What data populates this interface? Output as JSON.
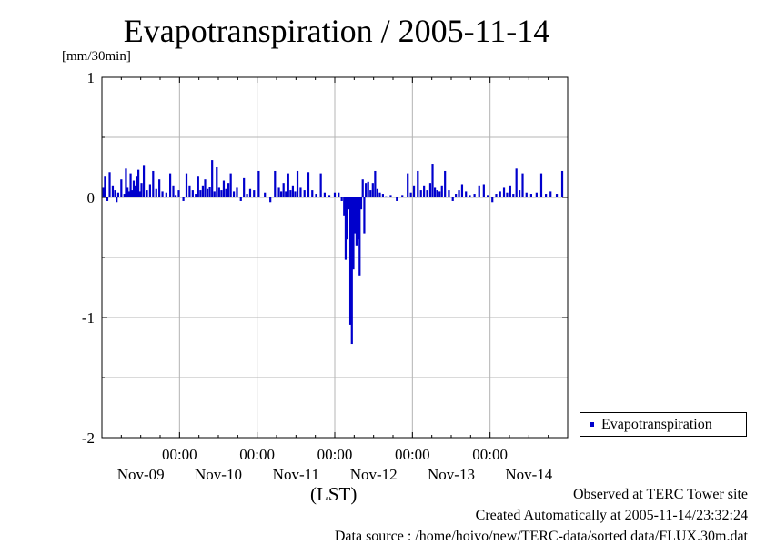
{
  "chart_data": {
    "type": "bar",
    "title": "Evapotranspiration / 2005-11-14",
    "ylabel": "[mm/30min]",
    "xlabel": "(LST)",
    "ylim": [
      -2,
      1
    ],
    "yticks": [
      {
        "value": 1,
        "label": "1"
      },
      {
        "value": 0,
        "label": "0"
      },
      {
        "value": -1,
        "label": "-1"
      },
      {
        "value": -2,
        "label": "-2"
      }
    ],
    "x_range_days": [
      0,
      6
    ],
    "x_tick_labels": [
      {
        "day": 1,
        "time": "00:00",
        "date": "Nov-09"
      },
      {
        "day": 2,
        "time": "00:00",
        "date": "Nov-10"
      },
      {
        "day": 3,
        "time": "00:00",
        "date": "Nov-11"
      },
      {
        "day": 4,
        "time": "00:00",
        "date": "Nov-12"
      },
      {
        "day": 5,
        "time": "00:00",
        "date": "Nov-13"
      },
      {
        "day": null,
        "time": "",
        "date": "Nov-14"
      }
    ],
    "grid": true,
    "legend_position": "right-bottom",
    "series": [
      {
        "name": "Evapotranspiration",
        "color": "#0000cc",
        "points": [
          [
            0.02,
            0.08
          ],
          [
            0.04,
            0.18
          ],
          [
            0.07,
            -0.03
          ],
          [
            0.1,
            0.21
          ],
          [
            0.14,
            0.1
          ],
          [
            0.17,
            0.06
          ],
          [
            0.19,
            -0.04
          ],
          [
            0.21,
            0.04
          ],
          [
            0.25,
            0.15
          ],
          [
            0.29,
            0.03
          ],
          [
            0.31,
            0.24
          ],
          [
            0.33,
            0.08
          ],
          [
            0.35,
            0.05
          ],
          [
            0.37,
            0.2
          ],
          [
            0.39,
            0.06
          ],
          [
            0.41,
            0.14
          ],
          [
            0.43,
            0.1
          ],
          [
            0.45,
            0.18
          ],
          [
            0.47,
            0.23
          ],
          [
            0.49,
            0.05
          ],
          [
            0.51,
            0.12
          ],
          [
            0.54,
            0.27
          ],
          [
            0.58,
            0.06
          ],
          [
            0.62,
            0.11
          ],
          [
            0.66,
            0.22
          ],
          [
            0.7,
            0.07
          ],
          [
            0.74,
            0.15
          ],
          [
            0.78,
            0.05
          ],
          [
            0.83,
            0.04
          ],
          [
            0.88,
            0.2
          ],
          [
            0.92,
            0.1
          ],
          [
            0.95,
            0.02
          ],
          [
            0.99,
            0.06
          ],
          [
            1.05,
            -0.03
          ],
          [
            1.09,
            0.2
          ],
          [
            1.13,
            0.1
          ],
          [
            1.17,
            0.06
          ],
          [
            1.21,
            0.03
          ],
          [
            1.24,
            0.18
          ],
          [
            1.27,
            0.06
          ],
          [
            1.3,
            0.1
          ],
          [
            1.33,
            0.15
          ],
          [
            1.36,
            0.07
          ],
          [
            1.39,
            0.09
          ],
          [
            1.42,
            0.31
          ],
          [
            1.45,
            0.05
          ],
          [
            1.48,
            0.25
          ],
          [
            1.51,
            0.08
          ],
          [
            1.54,
            0.06
          ],
          [
            1.57,
            0.14
          ],
          [
            1.6,
            0.07
          ],
          [
            1.63,
            0.12
          ],
          [
            1.66,
            0.2
          ],
          [
            1.7,
            0.05
          ],
          [
            1.74,
            0.08
          ],
          [
            1.79,
            -0.03
          ],
          [
            1.83,
            0.16
          ],
          [
            1.87,
            0.03
          ],
          [
            1.91,
            0.07
          ],
          [
            1.96,
            0.06
          ],
          [
            2.02,
            0.22
          ],
          [
            2.1,
            0.04
          ],
          [
            2.17,
            -0.04
          ],
          [
            2.23,
            0.22
          ],
          [
            2.28,
            0.08
          ],
          [
            2.31,
            0.05
          ],
          [
            2.34,
            0.12
          ],
          [
            2.37,
            0.05
          ],
          [
            2.4,
            0.2
          ],
          [
            2.43,
            0.06
          ],
          [
            2.46,
            0.1
          ],
          [
            2.49,
            0.05
          ],
          [
            2.52,
            0.22
          ],
          [
            2.56,
            0.08
          ],
          [
            2.61,
            0.06
          ],
          [
            2.66,
            0.21
          ],
          [
            2.71,
            0.06
          ],
          [
            2.76,
            0.03
          ],
          [
            2.82,
            0.2
          ],
          [
            2.87,
            0.04
          ],
          [
            2.93,
            0.02
          ],
          [
            3.0,
            0.04
          ],
          [
            3.05,
            0.04
          ],
          [
            3.09,
            -0.03
          ],
          [
            3.12,
            -0.15
          ],
          [
            3.14,
            -0.52
          ],
          [
            3.16,
            -0.35
          ],
          [
            3.18,
            -0.1
          ],
          [
            3.2,
            -1.06
          ],
          [
            3.22,
            -1.22
          ],
          [
            3.24,
            -0.6
          ],
          [
            3.26,
            -0.3
          ],
          [
            3.28,
            -0.4
          ],
          [
            3.3,
            -0.35
          ],
          [
            3.32,
            -0.65
          ],
          [
            3.34,
            -0.1
          ],
          [
            3.36,
            0.15
          ],
          [
            3.38,
            -0.3
          ],
          [
            3.4,
            0.12
          ],
          [
            3.43,
            0.13
          ],
          [
            3.46,
            0.06
          ],
          [
            3.49,
            0.12
          ],
          [
            3.52,
            0.22
          ],
          [
            3.55,
            0.07
          ],
          [
            3.58,
            0.04
          ],
          [
            3.62,
            0.03
          ],
          [
            3.66,
            0.01
          ],
          [
            3.72,
            0.02
          ],
          [
            3.8,
            -0.03
          ],
          [
            3.87,
            0.02
          ],
          [
            3.94,
            0.2
          ],
          [
            3.98,
            0.04
          ],
          [
            4.02,
            0.1
          ],
          [
            4.07,
            0.22
          ],
          [
            4.11,
            0.06
          ],
          [
            4.15,
            0.1
          ],
          [
            4.19,
            0.06
          ],
          [
            4.23,
            0.12
          ],
          [
            4.26,
            0.28
          ],
          [
            4.29,
            0.08
          ],
          [
            4.32,
            0.06
          ],
          [
            4.35,
            0.05
          ],
          [
            4.38,
            0.1
          ],
          [
            4.42,
            0.22
          ],
          [
            4.47,
            0.06
          ],
          [
            4.52,
            -0.03
          ],
          [
            4.56,
            0.03
          ],
          [
            4.6,
            0.06
          ],
          [
            4.64,
            0.11
          ],
          [
            4.69,
            0.05
          ],
          [
            4.74,
            0.02
          ],
          [
            4.8,
            0.03
          ],
          [
            4.86,
            0.1
          ],
          [
            4.92,
            0.11
          ],
          [
            4.97,
            0.02
          ],
          [
            5.03,
            -0.04
          ],
          [
            5.08,
            0.03
          ],
          [
            5.13,
            0.05
          ],
          [
            5.18,
            0.08
          ],
          [
            5.22,
            0.04
          ],
          [
            5.26,
            0.1
          ],
          [
            5.3,
            0.03
          ],
          [
            5.34,
            0.24
          ],
          [
            5.38,
            0.06
          ],
          [
            5.42,
            0.2
          ],
          [
            5.47,
            0.04
          ],
          [
            5.53,
            0.03
          ],
          [
            5.6,
            0.04
          ],
          [
            5.66,
            0.2
          ],
          [
            5.72,
            0.03
          ],
          [
            5.78,
            0.05
          ],
          [
            5.86,
            0.03
          ],
          [
            5.93,
            0.22
          ]
        ]
      }
    ]
  },
  "legend": {
    "label": "Evapotranspiration"
  },
  "footer": {
    "observed": "Observed at TERC Tower site",
    "created": "Created Automatically at 2005-11-14/23:32:24",
    "source": "Data source : /home/hoivo/new/TERC-data/sorted  data/FLUX.30m.dat"
  }
}
